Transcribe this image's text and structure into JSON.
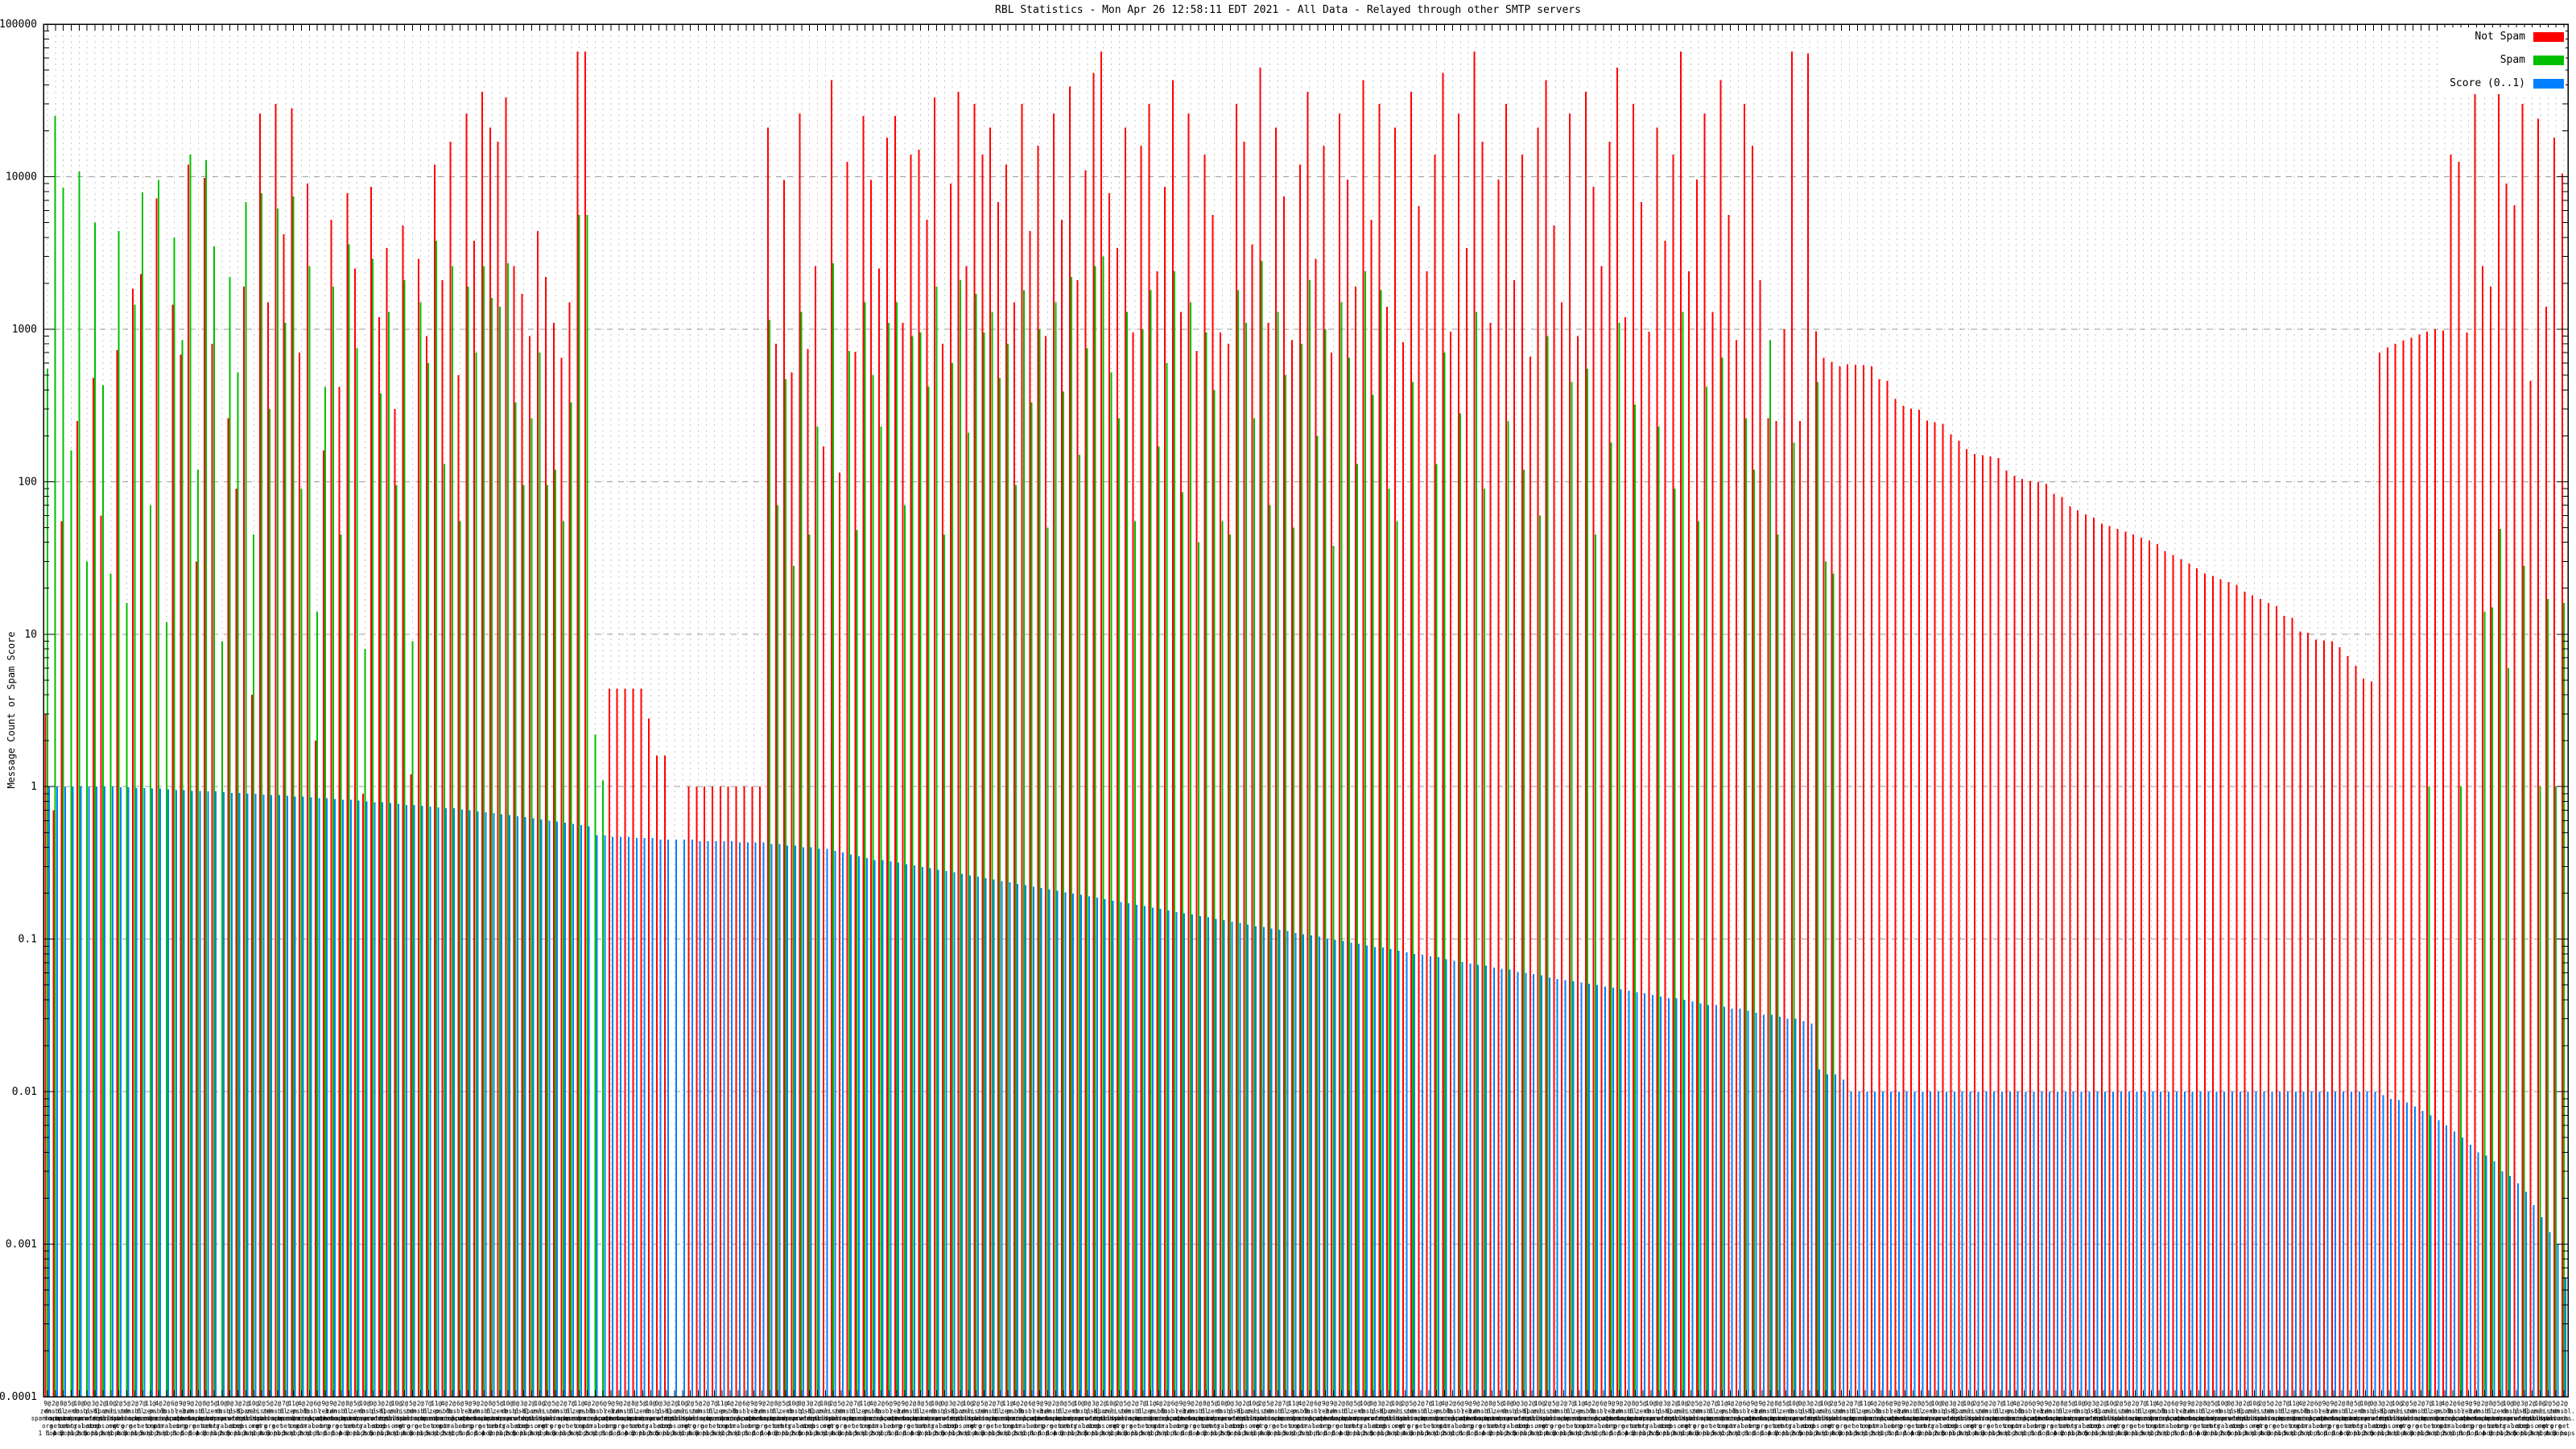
{
  "chart": {
    "title": "RBL Statistics - Mon Apr 26 12:58:11 EDT 2021 - All Data - Relayed through other SMTP servers",
    "y_axis": {
      "label": "Message Count or Spam Score",
      "scale": "log",
      "ticks": [
        "100000",
        "10000",
        "1000",
        "100",
        "10",
        "1",
        "0.1",
        "0.01",
        "0.001",
        "0.0001"
      ]
    },
    "legend": [
      {
        "label": "Not Spam",
        "color": "#ff0000"
      },
      {
        "label": "Spam",
        "color": "#00bf00"
      },
      {
        "label": "Score (0..1)",
        "color": "#0080ff"
      }
    ],
    "x_axis": {
      "note": "Per-RBL multi-line labels; heavily overlapped and mostly illegible in source image. Legible fragments: zen. spamhaus. org, dnsbl, sorbs, net, bl, spamcop, N@ counts, '1 hop'..'5 hops'.",
      "labels_cycle": [
        "9@|zen.|spamhaus.|org|1 hop",
        "2@|dnsbl.|sorbs.|net|1 hop",
        "8@|bl.|spamcop.|net|4 hops",
        "5@|zen.|spamhaus.|org|2 hops",
        "10@|b.|barracuda|central.org|1 hop",
        "0@|dnsbl-1.|uceprotect.|net|2 hops",
        "3@|psbl.|surriel.|com|5 hops",
        "2@|spam.|dnsbl.|sorbs.net|1 hop",
        "10@|zen.|spamhaus.|org|3 hops",
        "2@|list.|dsbl.|org|1 hop",
        "5@|zen.|spamhaus.|org|4 hops",
        "2@|dnsbl.|sorbs.|net|3 hops",
        "7@|bl.|spamcop.|net|1 hop",
        "11@|zen.|spamhaus.|org|5 hops",
        "4@|psbl.|surriel.|com|1 hop",
        "2@|b.|barracuda|central.org|2 hops",
        "6@|dnsbl-3.|uceprotect.|net|1 hop",
        "9@|zen.|spamhaus.|org|1 hop"
      ]
    }
  },
  "chart_data": {
    "type": "bar",
    "yscale": "log",
    "ylim": [
      0.0001,
      100000
    ],
    "n_groups": 318,
    "grid": {
      "vertical": "dotted per group",
      "horizontal": "dashed per decade"
    },
    "legend_position": "top-right",
    "series": [
      {
        "name": "Not Spam",
        "color": "#ff0000",
        "values": [
          3,
          0.7,
          55,
          0,
          250,
          0,
          480,
          60,
          0,
          730,
          0,
          1850,
          2300,
          0,
          7200,
          0,
          1450,
          680,
          12000,
          30,
          9800,
          800,
          0,
          260,
          90,
          1900,
          4,
          26000,
          1500,
          30000,
          4200,
          28000,
          700,
          9000,
          2,
          160,
          5200,
          420,
          7800,
          2500,
          0.9,
          8600,
          1200,
          3400,
          300,
          4800,
          1.2,
          2900,
          900,
          12000,
          2100,
          17000,
          500,
          26000,
          3800,
          36000,
          21000,
          17000,
          33000,
          2600,
          1700,
          900,
          4400,
          2200,
          1100,
          650,
          1500,
          66000,
          66000,
          0,
          0,
          4.4,
          4.4,
          4.4,
          4.4,
          4.4,
          2.8,
          1.6,
          1.6,
          0,
          0,
          1,
          1,
          1,
          1,
          1,
          1,
          1,
          1,
          1,
          1,
          21000,
          800,
          9500,
          520,
          26000,
          740,
          2600,
          170,
          43000,
          115,
          12500,
          710,
          25000,
          9500,
          2500,
          18000,
          25000,
          1100,
          14000,
          15000,
          5200,
          33000,
          800,
          9000,
          36000,
          2600,
          30000,
          14000,
          21000,
          6800,
          12000,
          1500,
          30000,
          4400,
          16000,
          900,
          26000,
          5200,
          39000,
          2100,
          11000,
          48000,
          66000,
          7800,
          3400,
          21000,
          950,
          16000,
          30000,
          2400,
          8600,
          43000,
          1300,
          26000,
          720,
          14000,
          5600,
          950,
          800,
          30000,
          17000,
          3600,
          52000,
          1100,
          21000,
          7400,
          850,
          12000,
          36000,
          2900,
          16000,
          700,
          26000,
          9600,
          1900,
          43000,
          5200,
          30000,
          1400,
          21000,
          820,
          36000,
          6400,
          2400,
          14000,
          48000,
          960,
          26000,
          3400,
          66000,
          17000,
          1100,
          9600,
          30000,
          2100,
          14000,
          660,
          21000,
          43000,
          4800,
          1500,
          26000,
          900,
          36000,
          8600,
          2600,
          17000,
          52000,
          1200,
          30000,
          6800,
          960,
          21000,
          3800,
          14000,
          66000,
          2400,
          9600,
          26000,
          1300,
          43000,
          5600,
          850,
          30000,
          16000,
          2100,
          260,
          250,
          1000,
          66000,
          250,
          64000,
          970,
          650,
          610,
          570,
          590,
          585,
          580,
          572,
          470,
          458,
          350,
          315,
          302,
          296,
          252,
          246,
          240,
          205,
          186,
          163,
          152,
          149,
          146,
          143,
          118,
          109,
          104,
          101,
          99,
          97,
          83,
          79,
          69,
          65,
          61,
          58,
          53,
          51,
          49,
          47,
          45,
          43,
          41,
          39,
          35,
          33,
          31,
          29,
          27,
          25,
          24,
          23,
          22,
          21,
          19,
          18,
          17,
          16,
          15.3,
          13.2,
          12.8,
          10.4,
          10.2,
          9.2,
          9.1,
          9,
          8.2,
          7.2,
          6.2,
          5.1,
          4.9,
          700,
          760,
          800,
          840,
          880,
          920,
          960,
          1000,
          980,
          14000,
          12500,
          950,
          55000,
          2600,
          1900,
          39000,
          9000,
          6500,
          30000,
          460,
          24000,
          1400,
          18000,
          10500
        ]
      },
      {
        "name": "Spam",
        "color": "#00bf00",
        "values": [
          550,
          25000,
          8500,
          160,
          10800,
          30,
          5000,
          430,
          25,
          4400,
          16,
          1450,
          7900,
          70,
          9500,
          12,
          4000,
          850,
          14000,
          120,
          12800,
          3500,
          9,
          2200,
          520,
          6800,
          45,
          7800,
          300,
          6200,
          1100,
          7400,
          90,
          2600,
          14,
          420,
          1900,
          45,
          3600,
          750,
          8,
          2900,
          380,
          1300,
          95,
          2100,
          9,
          1500,
          600,
          3800,
          130,
          2600,
          55,
          1900,
          700,
          2600,
          1600,
          1400,
          2700,
          330,
          95,
          260,
          700,
          95,
          120,
          55,
          330,
          5600,
          5600,
          2.2,
          1.1,
          0,
          0,
          0,
          0,
          0,
          0,
          0,
          0,
          0,
          0,
          0,
          0,
          0,
          0,
          0,
          0,
          0,
          0,
          0,
          0,
          1150,
          70,
          470,
          28,
          1300,
          45,
          230,
          0,
          2700,
          0,
          720,
          48,
          1500,
          500,
          230,
          1100,
          1500,
          70,
          900,
          950,
          420,
          1900,
          45,
          600,
          2100,
          210,
          1700,
          950,
          1300,
          480,
          800,
          95,
          1800,
          330,
          1000,
          50,
          1500,
          390,
          2200,
          150,
          750,
          2600,
          3000,
          520,
          260,
          1300,
          55,
          1000,
          1800,
          170,
          600,
          2400,
          85,
          1500,
          40,
          950,
          400,
          55,
          45,
          1800,
          1100,
          260,
          2800,
          70,
          1300,
          500,
          50,
          800,
          2100,
          200,
          1000,
          38,
          1500,
          650,
          130,
          2400,
          370,
          1800,
          90,
          55,
          0,
          450,
          0,
          0,
          130,
          700,
          0,
          280,
          0,
          1300,
          90,
          0,
          0,
          250,
          0,
          120,
          0,
          60,
          900,
          0,
          0,
          450,
          0,
          550,
          45,
          0,
          180,
          1100,
          0,
          320,
          0,
          0,
          230,
          0,
          90,
          1300,
          0,
          55,
          420,
          0,
          650,
          0,
          0,
          260,
          120,
          0,
          850,
          45,
          0,
          180,
          0,
          0,
          450,
          30,
          25,
          0,
          0,
          0,
          0,
          0,
          0,
          0,
          0,
          0,
          0,
          0,
          0,
          0,
          0,
          0,
          0,
          0,
          0,
          0,
          0,
          0,
          0,
          0,
          0,
          0,
          0,
          0,
          0,
          0,
          0,
          0,
          0,
          0,
          0,
          0,
          0,
          0,
          0,
          0,
          0,
          0,
          0,
          0,
          0,
          0,
          0,
          0,
          0,
          0,
          0,
          0,
          0,
          0,
          0,
          0,
          0,
          0,
          0,
          0,
          0,
          0,
          0,
          0,
          0,
          0,
          0,
          0,
          0,
          0,
          0,
          0,
          0,
          0,
          0,
          1,
          0,
          0,
          0,
          1,
          0,
          0,
          14,
          15,
          49,
          6,
          0,
          28,
          0,
          1,
          17,
          1,
          16
        ]
      },
      {
        "name": "Score (0..1)",
        "color": "#0080ff",
        "values": [
          1,
          1,
          1,
          1,
          1,
          1,
          1,
          1,
          1,
          0.99,
          0.99,
          0.98,
          0.98,
          0.97,
          0.97,
          0.96,
          0.95,
          0.95,
          0.94,
          0.94,
          0.93,
          0.93,
          0.92,
          0.91,
          0.91,
          0.9,
          0.9,
          0.89,
          0.88,
          0.88,
          0.87,
          0.86,
          0.86,
          0.85,
          0.84,
          0.84,
          0.83,
          0.82,
          0.82,
          0.81,
          0.8,
          0.79,
          0.79,
          0.78,
          0.77,
          0.76,
          0.76,
          0.75,
          0.74,
          0.73,
          0.72,
          0.72,
          0.71,
          0.7,
          0.69,
          0.68,
          0.67,
          0.66,
          0.65,
          0.64,
          0.63,
          0.62,
          0.61,
          0.6,
          0.59,
          0.58,
          0.57,
          0.56,
          0.55,
          0.48,
          0.48,
          0.47,
          0.47,
          0.47,
          0.46,
          0.46,
          0.46,
          0.45,
          0.45,
          0.45,
          0.45,
          0.45,
          0.44,
          0.44,
          0.44,
          0.44,
          0.44,
          0.43,
          0.43,
          0.43,
          0.43,
          0.42,
          0.42,
          0.41,
          0.41,
          0.4,
          0.4,
          0.39,
          0.39,
          0.38,
          0.37,
          0.36,
          0.35,
          0.34,
          0.33,
          0.33,
          0.324,
          0.317,
          0.311,
          0.304,
          0.298,
          0.292,
          0.285,
          0.279,
          0.274,
          0.268,
          0.262,
          0.257,
          0.251,
          0.246,
          0.241,
          0.236,
          0.231,
          0.226,
          0.221,
          0.217,
          0.212,
          0.208,
          0.203,
          0.199,
          0.195,
          0.191,
          0.187,
          0.183,
          0.179,
          0.175,
          0.172,
          0.168,
          0.165,
          0.161,
          0.158,
          0.154,
          0.151,
          0.148,
          0.145,
          0.142,
          0.139,
          0.136,
          0.133,
          0.13,
          0.128,
          0.125,
          0.122,
          0.12,
          0.117,
          0.115,
          0.113,
          0.11,
          0.108,
          0.106,
          0.104,
          0.101,
          0.099,
          0.097,
          0.095,
          0.093,
          0.091,
          0.089,
          0.088,
          0.086,
          0.084,
          0.082,
          0.08,
          0.079,
          0.077,
          0.076,
          0.074,
          0.072,
          0.071,
          0.069,
          0.068,
          0.067,
          0.065,
          0.064,
          0.063,
          0.061,
          0.06,
          0.059,
          0.058,
          0.056,
          0.055,
          0.054,
          0.053,
          0.052,
          0.051,
          0.05,
          0.049,
          0.048,
          0.047,
          0.046,
          0.045,
          0.044,
          0.043,
          0.042,
          0.041,
          0.041,
          0.04,
          0.039,
          0.038,
          0.037,
          0.037,
          0.036,
          0.035,
          0.035,
          0.034,
          0.033,
          0.032,
          0.032,
          0.031,
          0.03,
          0.03,
          0.029,
          0.028,
          0.014,
          0.013,
          0.013,
          0.012,
          0.01,
          0.01,
          0.01,
          0.01,
          0.01,
          0.01,
          0.01,
          0.01,
          0.01,
          0.01,
          0.01,
          0.01,
          0.01,
          0.01,
          0.01,
          0.01,
          0.01,
          0.01,
          0.01,
          0.01,
          0.01,
          0.01,
          0.01,
          0.01,
          0.01,
          0.01,
          0.01,
          0.01,
          0.01,
          0.01,
          0.01,
          0.01,
          0.01,
          0.01,
          0.01,
          0.01,
          0.01,
          0.01,
          0.01,
          0.01,
          0.01,
          0.01,
          0.01,
          0.01,
          0.01,
          0.01,
          0.01,
          0.01,
          0.01,
          0.01,
          0.01,
          0.01,
          0.01,
          0.01,
          0.01,
          0.01,
          0.01,
          0.01,
          0.01,
          0.01,
          0.01,
          0.01,
          0.01,
          0.01,
          0.01,
          0.01,
          0.01,
          0.0095,
          0.009,
          0.0088,
          0.0085,
          0.008,
          0.0075,
          0.007,
          0.0065,
          0.006,
          0.0055,
          0.005,
          0.0045,
          0.004,
          0.0038,
          0.0035,
          0.003,
          0.0028,
          0.0025,
          0.0022,
          0.0018,
          0.0015,
          0.0012,
          0.001,
          0.0006
        ]
      }
    ]
  }
}
